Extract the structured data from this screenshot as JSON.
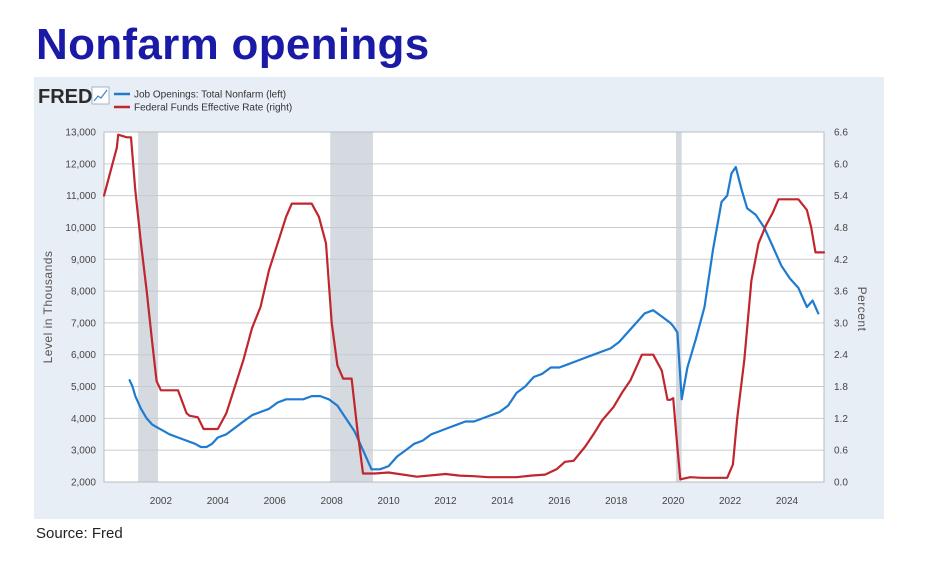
{
  "title": "Nonfarm openings",
  "source": "Source: Fred",
  "logo_text": "FRED",
  "logo_icon": "line-chart-icon",
  "colors": {
    "title": "#1a1aa6",
    "openings": "#1f7bd0",
    "fedfunds": "#c0262d",
    "recession": "#d5d9e0",
    "panel": "#e8eef6",
    "grid": "#c8cbd0"
  },
  "chart_data": {
    "type": "line",
    "xlabel": "",
    "ylabel": "Level in Thousands",
    "y2label": "Percent",
    "xlim": [
      2000.0,
      2025.3
    ],
    "ylim": [
      2000,
      13000
    ],
    "y2lim": [
      0.0,
      6.6
    ],
    "x_ticks": [
      2002,
      2004,
      2006,
      2008,
      2010,
      2012,
      2014,
      2016,
      2018,
      2020,
      2022,
      2024
    ],
    "y_ticks": [
      2000,
      3000,
      4000,
      5000,
      6000,
      7000,
      8000,
      9000,
      10000,
      11000,
      12000,
      13000
    ],
    "y_tick_labels": [
      "2,000",
      "3,000",
      "4,000",
      "5,000",
      "6,000",
      "7,000",
      "8,000",
      "9,000",
      "10,000",
      "11,000",
      "12,000",
      "13,000"
    ],
    "y2_ticks": [
      0.0,
      0.6,
      1.2,
      1.8,
      2.4,
      3.0,
      3.6,
      4.2,
      4.8,
      5.4,
      6.0,
      6.6
    ],
    "y2_tick_labels": [
      "0.0",
      "0.6",
      "1.2",
      "1.8",
      "2.4",
      "3.0",
      "3.6",
      "4.2",
      "4.8",
      "5.4",
      "6.0",
      "6.6"
    ],
    "grid": true,
    "legend_position": "top-left",
    "recessions": [
      [
        2001.2,
        2001.9
      ],
      [
        2007.95,
        2009.45
      ],
      [
        2020.1,
        2020.3
      ]
    ],
    "series": [
      {
        "name": "Job Openings: Total Nonfarm (left)",
        "axis": "left",
        "color": "#1f7bd0",
        "x": [
          2000.9,
          2001.0,
          2001.1,
          2001.3,
          2001.5,
          2001.7,
          2001.9,
          2002.1,
          2002.3,
          2002.6,
          2002.9,
          2003.2,
          2003.4,
          2003.6,
          2003.8,
          2004.0,
          2004.3,
          2004.6,
          2004.9,
          2005.2,
          2005.5,
          2005.8,
          2006.1,
          2006.4,
          2006.7,
          2007.0,
          2007.3,
          2007.6,
          2007.9,
          2008.2,
          2008.5,
          2008.8,
          2009.1,
          2009.4,
          2009.7,
          2010.0,
          2010.3,
          2010.6,
          2010.9,
          2011.2,
          2011.5,
          2011.8,
          2012.1,
          2012.4,
          2012.7,
          2013.0,
          2013.3,
          2013.6,
          2013.9,
          2014.2,
          2014.5,
          2014.8,
          2015.1,
          2015.4,
          2015.7,
          2016.0,
          2016.3,
          2016.6,
          2016.9,
          2017.2,
          2017.5,
          2017.8,
          2018.1,
          2018.4,
          2018.7,
          2019.0,
          2019.3,
          2019.6,
          2019.9,
          2020.0,
          2020.15,
          2020.3,
          2020.5,
          2020.8,
          2021.1,
          2021.4,
          2021.7,
          2021.9,
          2022.05,
          2022.2,
          2022.4,
          2022.6,
          2022.9,
          2023.2,
          2023.5,
          2023.8,
          2024.1,
          2024.4,
          2024.7,
          2024.9,
          2025.1
        ],
        "y": [
          5200,
          5000,
          4700,
          4300,
          4000,
          3800,
          3700,
          3600,
          3500,
          3400,
          3300,
          3200,
          3100,
          3100,
          3200,
          3400,
          3500,
          3700,
          3900,
          4100,
          4200,
          4300,
          4500,
          4600,
          4600,
          4600,
          4700,
          4700,
          4600,
          4400,
          4000,
          3600,
          3000,
          2400,
          2400,
          2500,
          2800,
          3000,
          3200,
          3300,
          3500,
          3600,
          3700,
          3800,
          3900,
          3900,
          4000,
          4100,
          4200,
          4400,
          4800,
          5000,
          5300,
          5400,
          5600,
          5600,
          5700,
          5800,
          5900,
          6000,
          6100,
          6200,
          6400,
          6700,
          7000,
          7300,
          7400,
          7200,
          7000,
          6900,
          6700,
          4600,
          5600,
          6500,
          7500,
          9300,
          10800,
          11000,
          11700,
          11900,
          11200,
          10600,
          10400,
          10000,
          9400,
          8800,
          8400,
          8100,
          7500,
          7700,
          7300
        ],
        "markers": false
      },
      {
        "name": "Federal Funds Effective Rate (right)",
        "axis": "right",
        "color": "#c0262d",
        "x": [
          2000.0,
          2000.15,
          2000.3,
          2000.45,
          2000.5,
          2000.8,
          2000.95,
          2001.1,
          2001.3,
          2001.5,
          2001.7,
          2001.85,
          2002.0,
          2002.3,
          2002.6,
          2002.9,
          2003.0,
          2003.3,
          2003.5,
          2003.9,
          2004.0,
          2004.3,
          2004.6,
          2004.9,
          2005.2,
          2005.5,
          2005.8,
          2006.1,
          2006.4,
          2006.6,
          2007.0,
          2007.3,
          2007.55,
          2007.8,
          2008.0,
          2008.2,
          2008.4,
          2008.7,
          2008.9,
          2009.1,
          2009.5,
          2010.0,
          2011.0,
          2012.0,
          2012.5,
          2013.0,
          2013.5,
          2014.0,
          2014.5,
          2015.0,
          2015.5,
          2015.9,
          2016.2,
          2016.5,
          2016.9,
          2017.2,
          2017.5,
          2017.9,
          2018.2,
          2018.5,
          2018.9,
          2019.0,
          2019.3,
          2019.6,
          2019.8,
          2019.9,
          2020.0,
          2020.15,
          2020.25,
          2020.6,
          2021.0,
          2021.5,
          2021.9,
          2022.1,
          2022.25,
          2022.5,
          2022.75,
          2023.0,
          2023.25,
          2023.5,
          2023.7,
          2024.0,
          2024.4,
          2024.7,
          2024.85,
          2025.0,
          2025.3
        ],
        "y": [
          5.4,
          5.7,
          6.0,
          6.3,
          6.55,
          6.5,
          6.5,
          5.5,
          4.5,
          3.6,
          2.6,
          1.9,
          1.73,
          1.73,
          1.73,
          1.3,
          1.25,
          1.22,
          1.0,
          1.0,
          1.0,
          1.3,
          1.8,
          2.3,
          2.9,
          3.3,
          4.0,
          4.5,
          5.0,
          5.25,
          5.25,
          5.25,
          5.0,
          4.5,
          3.0,
          2.2,
          1.95,
          1.95,
          1.0,
          0.16,
          0.16,
          0.18,
          0.1,
          0.15,
          0.12,
          0.11,
          0.09,
          0.09,
          0.09,
          0.12,
          0.14,
          0.24,
          0.38,
          0.4,
          0.66,
          0.9,
          1.16,
          1.41,
          1.68,
          1.92,
          2.4,
          2.4,
          2.4,
          2.1,
          1.55,
          1.55,
          1.58,
          0.65,
          0.05,
          0.09,
          0.08,
          0.08,
          0.08,
          0.33,
          1.2,
          2.3,
          3.8,
          4.5,
          4.83,
          5.08,
          5.33,
          5.33,
          5.33,
          5.13,
          4.8,
          4.33,
          4.33
        ],
        "markers": false
      }
    ]
  }
}
